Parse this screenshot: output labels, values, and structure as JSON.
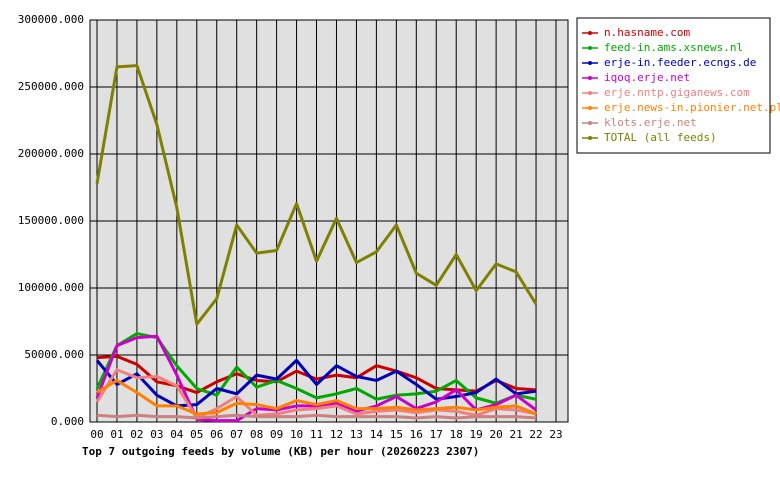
{
  "chart_data": {
    "type": "line",
    "title": "Top 7 outgoing feeds by volume (KB) per hour (20260223 2307)",
    "categories": [
      "00",
      "01",
      "02",
      "03",
      "04",
      "05",
      "06",
      "07",
      "08",
      "09",
      "10",
      "11",
      "12",
      "13",
      "14",
      "15",
      "16",
      "17",
      "18",
      "19",
      "20",
      "21",
      "22",
      "23"
    ],
    "ylim": [
      0,
      300000
    ],
    "yticks": [
      {
        "value": 0,
        "label": "0.000"
      },
      {
        "value": 50000,
        "label": "50000.000"
      },
      {
        "value": 100000,
        "label": "100000.000"
      },
      {
        "value": 150000,
        "label": "150000.000"
      },
      {
        "value": 200000,
        "label": "200000.000"
      },
      {
        "value": 250000,
        "label": "250000.000"
      },
      {
        "value": 300000,
        "label": "300000.000"
      }
    ],
    "grid": true,
    "legend": "right",
    "series": [
      {
        "name": "n.hasname.com",
        "color": "#cc0000",
        "values": [
          48000,
          49000,
          43000,
          30000,
          27000,
          22000,
          30000,
          36000,
          31000,
          30000,
          38000,
          32000,
          35000,
          33000,
          42000,
          38000,
          33000,
          25000,
          24000,
          23000,
          31000,
          25000,
          24000,
          null
        ]
      },
      {
        "name": "feed-in.ams.xsnews.nl",
        "color": "#00aa00",
        "values": [
          25000,
          57000,
          66000,
          63000,
          42000,
          25000,
          20000,
          41000,
          26000,
          31000,
          25000,
          18000,
          21000,
          25000,
          17000,
          20000,
          21000,
          23000,
          31000,
          18000,
          14000,
          20000,
          17000,
          null
        ]
      },
      {
        "name": "erje-in.feeder.ecngs.de",
        "color": "#0000bb",
        "values": [
          46000,
          28000,
          36000,
          20000,
          12000,
          13000,
          25000,
          21000,
          35000,
          32000,
          46000,
          28000,
          42000,
          34000,
          31000,
          38000,
          28000,
          17000,
          19000,
          22000,
          32000,
          21000,
          23000,
          null
        ]
      },
      {
        "name": "iqoq.erje.net",
        "color": "#cc00cc",
        "values": [
          18000,
          57000,
          63000,
          64000,
          35000,
          2000,
          1000,
          1000,
          10000,
          9000,
          12000,
          12000,
          14000,
          8000,
          12000,
          19000,
          10000,
          15000,
          24000,
          9000,
          13000,
          20000,
          9000,
          null
        ]
      },
      {
        "name": "erje.nntp.giganews.com",
        "color": "#f08080",
        "values": [
          15000,
          39000,
          33000,
          34000,
          27000,
          3000,
          10000,
          19000,
          5000,
          6000,
          9000,
          10000,
          12000,
          6000,
          8000,
          9000,
          7000,
          9000,
          8000,
          5000,
          10000,
          9000,
          6000,
          null
        ]
      },
      {
        "name": "erje.news-in.pionier.net.pl",
        "color": "#ff8000",
        "values": [
          22000,
          31000,
          22000,
          12000,
          12000,
          6000,
          7000,
          14000,
          13000,
          10000,
          16000,
          13000,
          16000,
          10000,
          10000,
          11000,
          9000,
          10000,
          11000,
          9000,
          11000,
          12000,
          6000,
          null
        ]
      },
      {
        "name": "klots.erje.net",
        "color": "#cc8080",
        "values": [
          5000,
          4000,
          5000,
          4000,
          4000,
          3000,
          4000,
          5000,
          4000,
          4000,
          4000,
          5000,
          4000,
          4000,
          4000,
          4000,
          3000,
          4000,
          3000,
          4000,
          4000,
          4000,
          3000,
          null
        ]
      },
      {
        "name": "TOTAL (all feeds)",
        "color": "#808000",
        "values": [
          178000,
          265000,
          266000,
          222000,
          160000,
          73000,
          92000,
          147000,
          126000,
          128000,
          163000,
          120000,
          152000,
          119000,
          127000,
          147000,
          111000,
          102000,
          125000,
          98000,
          118000,
          112000,
          88000,
          null
        ]
      }
    ]
  }
}
